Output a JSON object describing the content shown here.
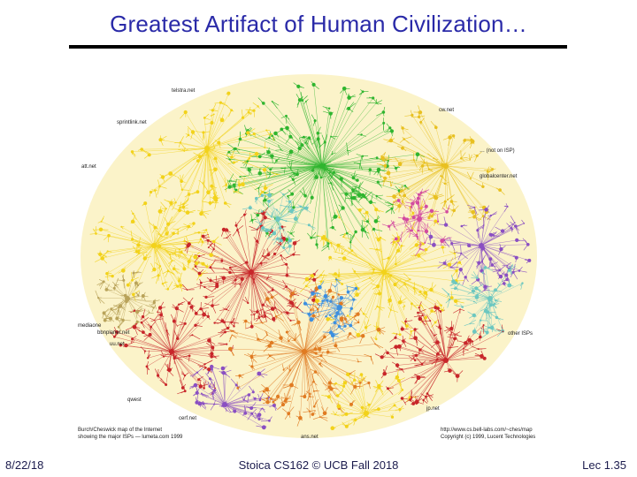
{
  "slide": {
    "title": "Greatest Artifact of Human Civilization…",
    "footer_date": "8/22/18",
    "footer_course": "Stoica CS162 © UCB Fall 2018",
    "footer_page": "Lec 1.35"
  },
  "map": {
    "colors": [
      "#f2d21a",
      "#e8c020",
      "#2fb52f",
      "#c8262a",
      "#3c8fe0",
      "#e07b22",
      "#8a4fc2",
      "#6cc7c0",
      "#b9a35a",
      "#d34ba0"
    ],
    "labels_top": [
      "telstra.net",
      "cw.net",
      "sprintlink.net",
      "att.net",
      "… (not on ISP)",
      "globalcenter.net"
    ],
    "labels_bottom": [
      "mediaone",
      "bbnplanet.net",
      "uu.net",
      "other ISPs",
      "cerf.net",
      "jp.net",
      "qwest",
      "ans.net"
    ],
    "caption_left_line1": "Burch/Cheswick map of the Internet",
    "caption_left_line2": "showing the major ISPs — lumeta.com 1999",
    "caption_right_line1": "http://www.cs.bell-labs.com/~ches/map",
    "caption_right_line2": "Copyright (c) 1999, Lucent Technologies"
  }
}
